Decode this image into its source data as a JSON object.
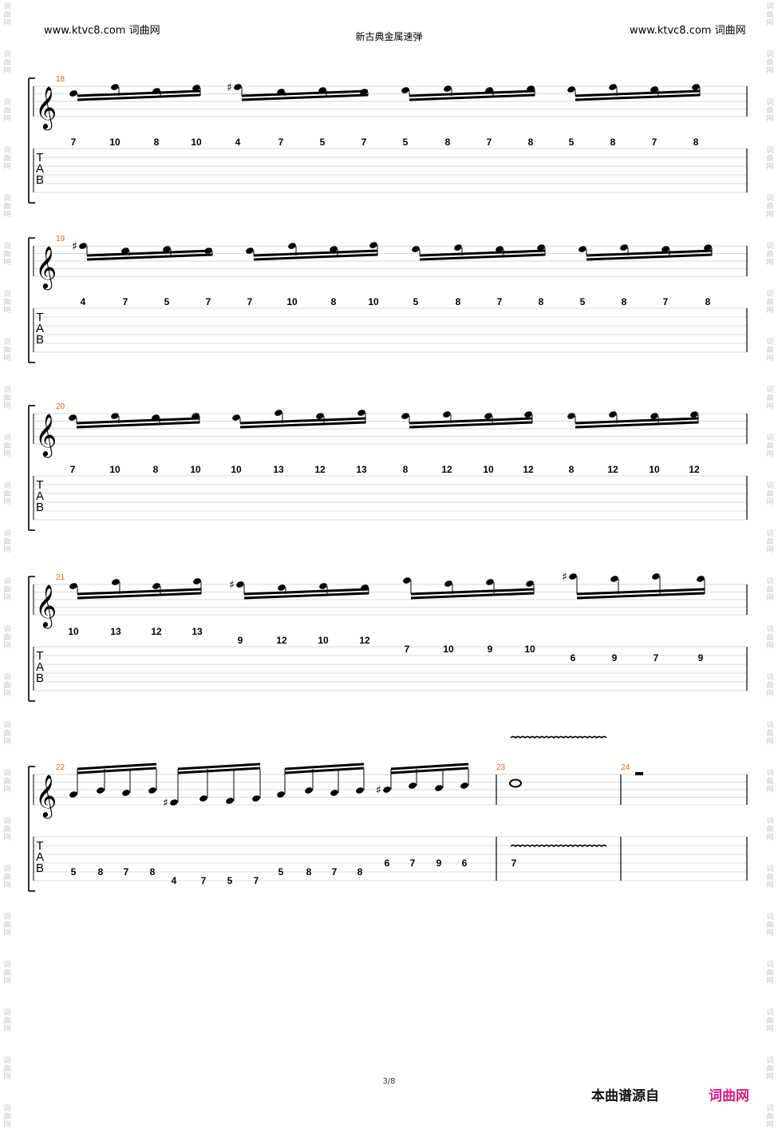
{
  "header": {
    "site_left": "www.ktvc8.com 词曲网",
    "site_right": "www.ktvc8.com 词曲网",
    "title": "新古典金属速弹"
  },
  "watermark": [
    "词",
    "曲",
    "网"
  ],
  "colors": {
    "measure_number": "#d2691e",
    "brand": "#e4197c",
    "watermark": "#c4c4c4"
  },
  "systems": [
    {
      "measure_numbers": [
        "18"
      ],
      "groups": [
        {
          "notes": [
            {
              "acc": ""
            },
            {
              "acc": ""
            },
            {
              "acc": ""
            },
            {
              "acc": ""
            }
          ],
          "tab": [
            "7",
            "10",
            "8",
            "10"
          ]
        },
        {
          "notes": [
            {
              "acc": "♯"
            },
            {
              "acc": ""
            },
            {
              "acc": ""
            },
            {
              "acc": ""
            }
          ],
          "tab": [
            "4",
            "7",
            "5",
            "7"
          ]
        },
        {
          "notes": [
            {
              "acc": ""
            },
            {
              "acc": ""
            },
            {
              "acc": ""
            },
            {
              "acc": ""
            }
          ],
          "tab": [
            "5",
            "8",
            "7",
            "8"
          ]
        },
        {
          "notes": [
            {
              "acc": ""
            },
            {
              "acc": ""
            },
            {
              "acc": ""
            },
            {
              "acc": ""
            }
          ],
          "tab": [
            "5",
            "8",
            "7",
            "8"
          ]
        }
      ]
    },
    {
      "measure_numbers": [
        "19"
      ],
      "groups": [
        {
          "notes": [
            {
              "acc": "♯"
            },
            {
              "acc": ""
            },
            {
              "acc": ""
            },
            {
              "acc": ""
            }
          ],
          "tab": [
            "4",
            "7",
            "5",
            "7"
          ]
        },
        {
          "notes": [
            {
              "acc": ""
            },
            {
              "acc": ""
            },
            {
              "acc": ""
            },
            {
              "acc": ""
            }
          ],
          "tab": [
            "7",
            "10",
            "8",
            "10"
          ]
        },
        {
          "notes": [
            {
              "acc": ""
            },
            {
              "acc": ""
            },
            {
              "acc": ""
            },
            {
              "acc": ""
            }
          ],
          "tab": [
            "5",
            "8",
            "7",
            "8"
          ]
        },
        {
          "notes": [
            {
              "acc": ""
            },
            {
              "acc": ""
            },
            {
              "acc": ""
            },
            {
              "acc": ""
            }
          ],
          "tab": [
            "5",
            "8",
            "7",
            "8"
          ]
        }
      ]
    },
    {
      "measure_numbers": [
        "20"
      ],
      "groups": [
        {
          "notes": [
            {
              "acc": ""
            },
            {
              "acc": ""
            },
            {
              "acc": ""
            },
            {
              "acc": ""
            }
          ],
          "tab": [
            "7",
            "10",
            "8",
            "10"
          ]
        },
        {
          "notes": [
            {
              "acc": ""
            },
            {
              "acc": ""
            },
            {
              "acc": ""
            },
            {
              "acc": ""
            }
          ],
          "tab": [
            "10",
            "13",
            "12",
            "13"
          ]
        },
        {
          "notes": [
            {
              "acc": ""
            },
            {
              "acc": ""
            },
            {
              "acc": ""
            },
            {
              "acc": ""
            }
          ],
          "tab": [
            "8",
            "12",
            "10",
            "12"
          ]
        },
        {
          "notes": [
            {
              "acc": ""
            },
            {
              "acc": ""
            },
            {
              "acc": ""
            },
            {
              "acc": ""
            }
          ],
          "tab": [
            "8",
            "12",
            "10",
            "12"
          ]
        }
      ]
    },
    {
      "measure_numbers": [
        "21"
      ],
      "groups": [
        {
          "notes": [
            {
              "acc": ""
            },
            {
              "acc": ""
            },
            {
              "acc": ""
            },
            {
              "acc": ""
            }
          ],
          "tab": [
            "10",
            "13",
            "12",
            "13"
          ]
        },
        {
          "notes": [
            {
              "acc": "♯"
            },
            {
              "acc": ""
            },
            {
              "acc": ""
            },
            {
              "acc": ""
            }
          ],
          "tab": [
            "9",
            "12",
            "10",
            "12"
          ]
        },
        {
          "notes": [
            {
              "acc": ""
            },
            {
              "acc": ""
            },
            {
              "acc": ""
            },
            {
              "acc": ""
            }
          ],
          "tab": [
            "7",
            "10",
            "9",
            "10"
          ]
        },
        {
          "notes": [
            {
              "acc": "♯"
            },
            {
              "acc": ""
            },
            {
              "acc": ""
            },
            {
              "acc": ""
            }
          ],
          "tab": [
            "6",
            "9",
            "7",
            "9"
          ]
        }
      ]
    },
    {
      "measure_numbers": [
        "22",
        "23",
        "24"
      ],
      "groups": [
        {
          "notes": [
            {
              "acc": ""
            },
            {
              "acc": ""
            },
            {
              "acc": ""
            },
            {
              "acc": ""
            }
          ],
          "tab": [
            "5",
            "8",
            "7",
            "8"
          ]
        },
        {
          "notes": [
            {
              "acc": "♯"
            },
            {
              "acc": ""
            },
            {
              "acc": ""
            },
            {
              "acc": ""
            }
          ],
          "tab": [
            "4",
            "7",
            "5",
            "7"
          ]
        },
        {
          "notes": [
            {
              "acc": ""
            },
            {
              "acc": ""
            },
            {
              "acc": ""
            },
            {
              "acc": ""
            }
          ],
          "tab": [
            "5",
            "8",
            "7",
            "8"
          ]
        },
        {
          "notes": [
            {
              "acc": "♯"
            },
            {
              "acc": ""
            },
            {
              "acc": ""
            },
            {
              "acc": ""
            }
          ],
          "tab": [
            "6",
            "7",
            "9",
            "6"
          ]
        }
      ],
      "whole_note_tab": "7"
    }
  ],
  "tab_clef": [
    "T",
    "A",
    "B"
  ],
  "footer": {
    "page": "3/8",
    "source_label": "本曲谱源自",
    "brand": "词曲网"
  }
}
